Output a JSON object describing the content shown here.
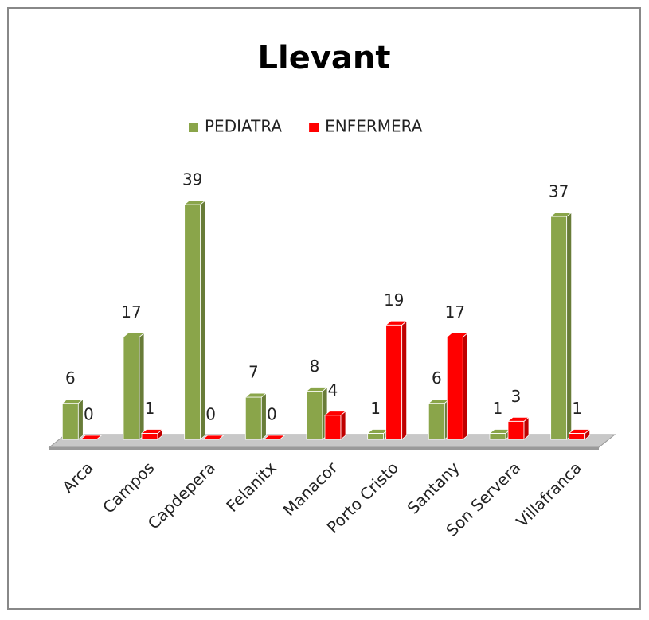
{
  "chart_data": {
    "type": "bar3d",
    "title": "Llevant",
    "categories": [
      "Arca",
      "Campos",
      "Capdepera",
      "Felanitx",
      "Manacor",
      "Porto Cristo",
      "Santany",
      "Son Servera",
      "Villafranca"
    ],
    "series": [
      {
        "name": "PEDIATRA",
        "color": "#8aa54a",
        "values": [
          6,
          17,
          39,
          7,
          8,
          1,
          6,
          1,
          37
        ]
      },
      {
        "name": "ENFERMERA",
        "color": "#ff0000",
        "values": [
          0,
          1,
          0,
          0,
          4,
          19,
          17,
          3,
          1
        ]
      }
    ],
    "legend": "top"
  }
}
